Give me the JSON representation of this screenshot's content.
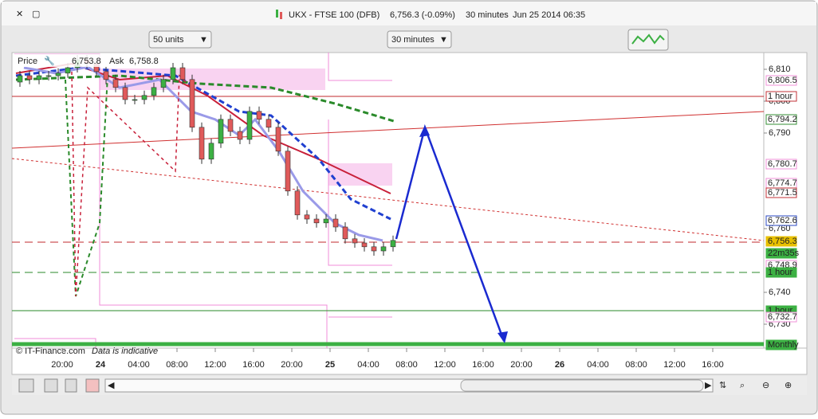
{
  "window": {
    "title": "UKX - FTSE 100 (DFB)",
    "quote": "6,756.3 (-0.09%)",
    "interval": "30 minutes",
    "datetime": "Jun 25 2014 06:35"
  },
  "toolbar": {
    "units": "50 units",
    "timeframe": "30 minutes"
  },
  "chart_data": {
    "type": "candlestick",
    "legend_label": "Price",
    "bid": "6,753.8",
    "ask_label": "Ask",
    "ask": "6,758.8",
    "copyright": "© IT-Finance.com",
    "note": "Data is indicative",
    "xticks": [
      "20:00",
      "24",
      "04:00",
      "08:00",
      "12:00",
      "16:00",
      "20:00",
      "25",
      "04:00",
      "08:00",
      "12:00",
      "16:00",
      "20:00",
      "26",
      "04:00",
      "08:00",
      "12:00",
      "16:00"
    ],
    "ylim": [
      6722.5,
      6815.25
    ],
    "yticks": [
      {
        "value": 6810,
        "label": "6,810"
      },
      {
        "value": 6800,
        "label": "6,800"
      },
      {
        "value": 6790,
        "label": "6,790"
      },
      {
        "value": 6760,
        "label": "6,760"
      },
      {
        "value": 6740,
        "label": "6,740"
      },
      {
        "value": 6730,
        "label": "6,730"
      }
    ],
    "open": [
      6806,
      6808,
      6806.8,
      6808,
      6808,
      6808.8,
      6810.5,
      6813,
      6811.8,
      6809.3,
      6806.8,
      6804.3,
      6800.5,
      6800.5,
      6801.8,
      6804.3,
      6806.8,
      6810.5,
      6806.8,
      6791.8,
      6781.8,
      6786.8,
      6794.3,
      6790.5,
      6788,
      6796.8,
      6794.3,
      6791.8,
      6784.3,
      6771.8,
      6764.3,
      6763,
      6761.8,
      6763,
      6760.5,
      6756.8,
      6755.5,
      6754.3,
      6753,
      6754.3
    ],
    "high": [
      6809.5,
      6809.5,
      6809.5,
      6809.5,
      6810.3,
      6812,
      6814.5,
      6814.5,
      6813.3,
      6810.8,
      6808.3,
      6805.8,
      6802,
      6803.3,
      6805.8,
      6808.3,
      6812,
      6812,
      6808.3,
      6793.3,
      6788.3,
      6795.8,
      6795.8,
      6792,
      6798.3,
      6798.3,
      6795.8,
      6793.3,
      6785.8,
      6773.3,
      6765.8,
      6764.5,
      6764.5,
      6764.5,
      6762,
      6758.3,
      6757,
      6755.8,
      6755.8,
      6757.8
    ],
    "low": [
      6804.5,
      6805.3,
      6805.3,
      6806.5,
      6806.5,
      6807.3,
      6809,
      6810.3,
      6807.8,
      6805.3,
      6802.8,
      6799,
      6799,
      6799,
      6800.3,
      6802.8,
      6805.3,
      6805.3,
      6790.3,
      6780.3,
      6780.3,
      6785.3,
      6789,
      6786.5,
      6786.5,
      6792.8,
      6790.3,
      6782.8,
      6770.3,
      6762.8,
      6761.5,
      6760.3,
      6760.3,
      6759,
      6755.3,
      6754,
      6752.8,
      6751.5,
      6751.5,
      6752.8
    ],
    "close": [
      6808,
      6806.8,
      6808,
      6808,
      6808.8,
      6810.5,
      6813,
      6811.8,
      6809.3,
      6806.8,
      6804.3,
      6800.5,
      6800.5,
      6801.8,
      6804.3,
      6806.8,
      6810.5,
      6806.8,
      6791.8,
      6781.8,
      6786.8,
      6794.3,
      6790.5,
      6788,
      6796.8,
      6794.3,
      6791.8,
      6784.3,
      6771.8,
      6764.3,
      6763,
      6761.8,
      6763,
      6760.5,
      6756.8,
      6755.5,
      6754.3,
      6753,
      6754.3,
      6756.3
    ],
    "up_color": "#3cb043",
    "down_color": "#e05a5a",
    "price_tags": [
      {
        "text": "6,806.5",
        "color": "#f08cd8"
      },
      {
        "text": "1 hour",
        "color": "#c0282d"
      },
      {
        "text": "6,794.2",
        "color": "#2a8a2a"
      },
      {
        "text": "6,780.7",
        "color": "#f08cd8"
      },
      {
        "text": "6,774.7",
        "color": "#f08cd8"
      },
      {
        "text": "6,771.5",
        "color": "#c0282d"
      },
      {
        "text": "6,762.6",
        "color": "#2040c0"
      },
      {
        "text": "6,756.3",
        "color": "#e8c000"
      },
      {
        "text": "22m35s",
        "color": "#3cb043"
      },
      {
        "text": "6,748.9",
        "color": "#f08cd8"
      },
      {
        "text": "1 hour",
        "color": "#3cb043"
      },
      {
        "text": "1 hour",
        "color": "#3cb043"
      },
      {
        "text": "6,732.7",
        "color": "#f08cd8"
      },
      {
        "text": "Monthly",
        "color": "#3cb043"
      }
    ]
  }
}
